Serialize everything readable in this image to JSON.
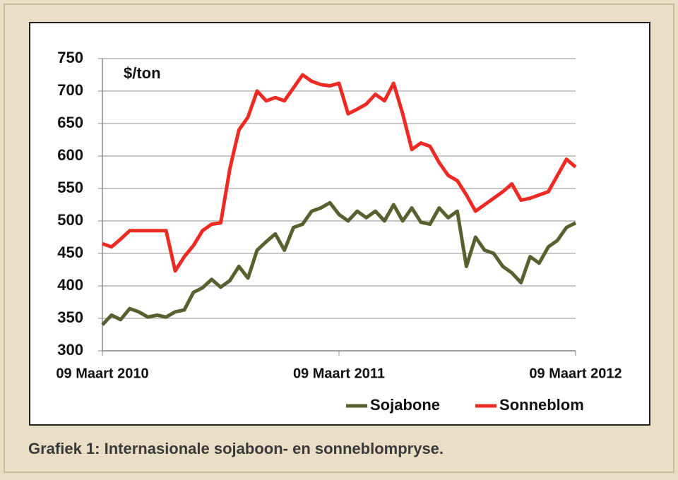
{
  "chart_data": {
    "type": "line",
    "caption": "Grafiek 1: Internasionale sojaboon- en sonneblompryse.",
    "annotation": "$/ton",
    "categories": [
      "09 Maart 2010",
      null,
      null,
      null,
      null,
      null,
      null,
      null,
      null,
      null,
      null,
      null,
      null,
      null,
      null,
      null,
      null,
      null,
      null,
      null,
      null,
      null,
      null,
      null,
      null,
      null,
      "09 Maart 2011",
      null,
      null,
      null,
      null,
      null,
      null,
      null,
      null,
      null,
      null,
      null,
      null,
      null,
      null,
      null,
      null,
      null,
      null,
      null,
      null,
      null,
      null,
      null,
      null,
      null,
      "09 Maart 2012"
    ],
    "series": [
      {
        "name": "Sojabone",
        "color": "#57602f",
        "values": [
          340,
          355,
          348,
          365,
          360,
          352,
          355,
          352,
          360,
          363,
          390,
          397,
          410,
          398,
          408,
          430,
          412,
          455,
          468,
          480,
          455,
          490,
          495,
          515,
          520,
          528,
          510,
          500,
          515,
          505,
          515,
          500,
          525,
          500,
          520,
          498,
          495,
          520,
          505,
          515,
          430,
          475,
          455,
          450,
          430,
          420,
          405,
          445,
          435,
          460,
          470,
          490,
          497
        ]
      },
      {
        "name": "Sonneblom",
        "color": "#ee2a24",
        "values": [
          465,
          460,
          472,
          485,
          485,
          485,
          485,
          485,
          423,
          445,
          462,
          485,
          495,
          497,
          580,
          640,
          660,
          700,
          685,
          690,
          685,
          705,
          725,
          715,
          710,
          708,
          712,
          665,
          672,
          680,
          695,
          685,
          712,
          665,
          610,
          620,
          615,
          590,
          570,
          562,
          540,
          515,
          525,
          535,
          545,
          557,
          532,
          535,
          540,
          545,
          570,
          595,
          583
        ]
      }
    ],
    "ylim": [
      300,
      750
    ],
    "yticks": [
      300,
      350,
      400,
      450,
      500,
      550,
      600,
      650,
      700,
      750
    ],
    "grid": true,
    "legend_position": "bottom-right"
  }
}
